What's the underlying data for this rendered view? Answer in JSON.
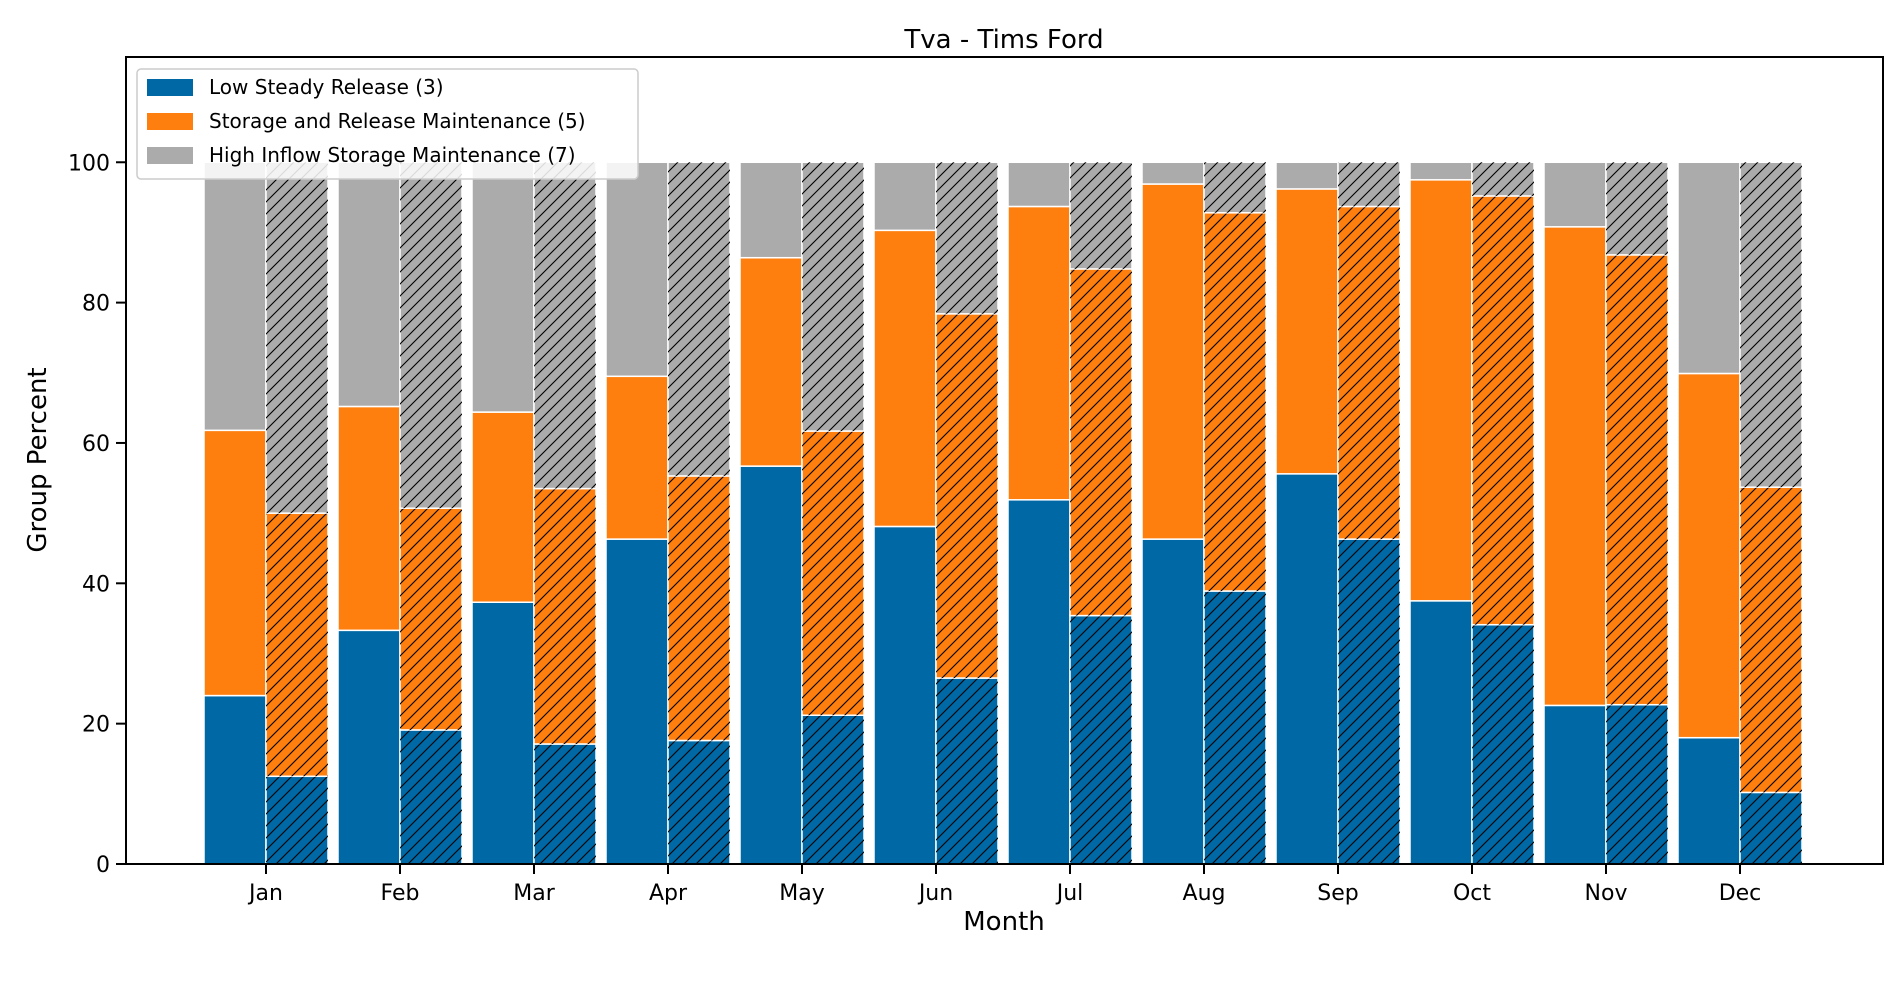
{
  "chart_data": {
    "type": "bar",
    "stacked": true,
    "grouped_pairs": true,
    "title": "Tva - Tims Ford",
    "xlabel": "Month",
    "ylabel": "Group Percent",
    "ylim": [
      0,
      115
    ],
    "yticks": [
      0,
      20,
      40,
      60,
      80,
      100
    ],
    "categories": [
      "Jan",
      "Feb",
      "Mar",
      "Apr",
      "May",
      "Jun",
      "Jul",
      "Aug",
      "Sep",
      "Oct",
      "Nov",
      "Dec"
    ],
    "legend_position": "top-left",
    "series": [
      {
        "name": "Low Steady Release (3)",
        "color": "#0068a5",
        "solid": [
          24.0,
          33.3,
          37.3,
          46.3,
          56.7,
          48.1,
          51.9,
          46.3,
          55.6,
          37.5,
          22.6,
          18.0
        ],
        "hatched": [
          12.5,
          19.1,
          17.1,
          17.6,
          21.2,
          26.5,
          35.4,
          38.9,
          46.3,
          34.1,
          22.7,
          10.2
        ]
      },
      {
        "name": "Storage and Release Maintenance (5)",
        "color": "#ff7f0e",
        "solid": [
          37.8,
          31.9,
          27.1,
          23.2,
          29.7,
          42.2,
          41.8,
          50.6,
          40.6,
          60.0,
          68.2,
          51.9
        ],
        "hatched": [
          37.5,
          31.6,
          36.4,
          37.7,
          40.5,
          51.9,
          49.4,
          53.9,
          47.4,
          61.1,
          64.1,
          43.5
        ]
      },
      {
        "name": "High Inflow Storage Maintenance (7)",
        "color": "#ababab",
        "solid": [
          38.2,
          34.8,
          35.6,
          30.5,
          13.6,
          9.7,
          6.3,
          3.1,
          3.8,
          2.5,
          9.2,
          30.1
        ],
        "hatched": [
          50.0,
          49.3,
          46.5,
          44.7,
          38.3,
          21.6,
          15.2,
          7.2,
          6.3,
          4.8,
          13.2,
          46.3
        ]
      }
    ]
  }
}
